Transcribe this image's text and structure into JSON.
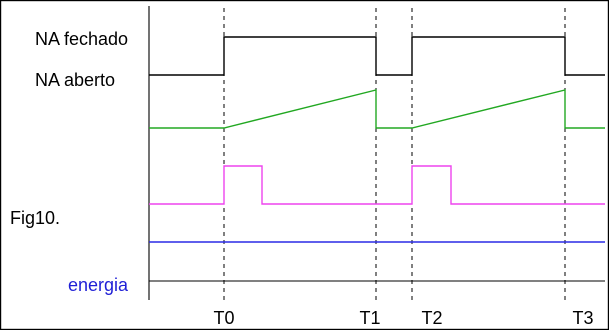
{
  "labels": {
    "na_fechado": "NA fechado",
    "na_aberto": "NA aberto",
    "figure": "Fig10.",
    "energia": "energia"
  },
  "time_labels": [
    "T0",
    "T1",
    "T2",
    "T3"
  ],
  "colors": {
    "contact": "#000000",
    "ramp": "#22a822",
    "pulse": "#ee44ee",
    "energy": "#2a2ae6",
    "energy_label": "#1f1fd6"
  }
}
